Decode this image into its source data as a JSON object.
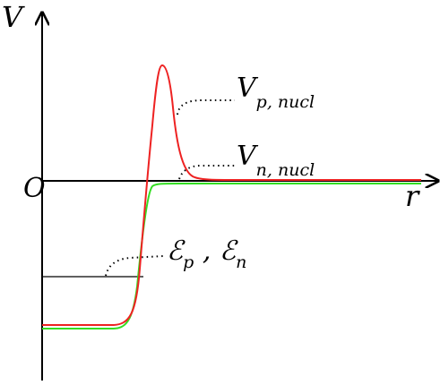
{
  "axes": {
    "y_label": "V",
    "x_label": "r",
    "origin": "O"
  },
  "labels": {
    "proton_potential": {
      "symbol": "V",
      "subscript": "p, nucl"
    },
    "neutron_potential": {
      "symbol": "V",
      "subscript": "n, nucl"
    },
    "energies": {
      "symbol_1": "ℰ",
      "subscript_1": "p",
      "separator": " , ",
      "symbol_2": "ℰ",
      "subscript_2": "n"
    }
  }
}
